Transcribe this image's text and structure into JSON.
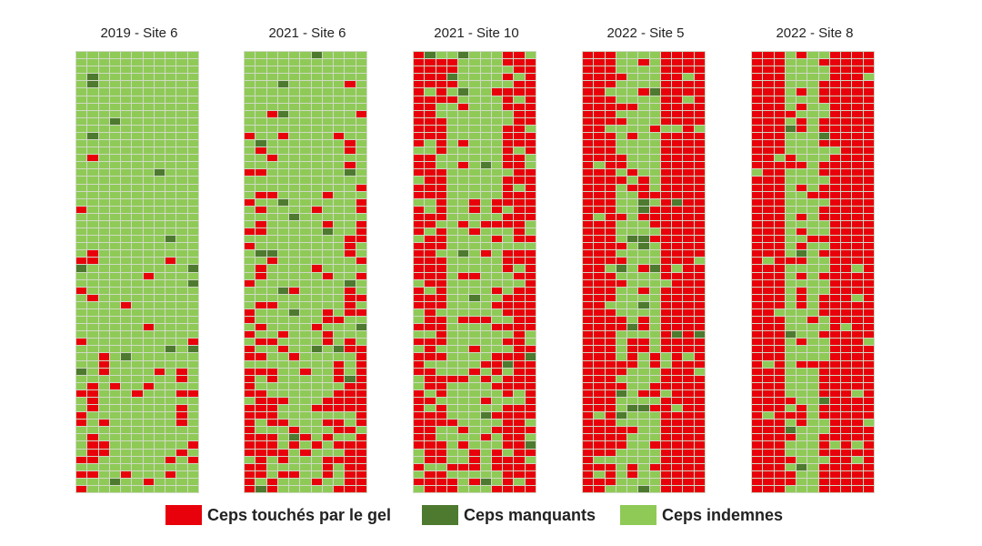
{
  "panels": [
    {
      "title": "2019 - Site 6"
    },
    {
      "title": "2021 - Site 6"
    },
    {
      "title": "2021 - Site 10"
    },
    {
      "title": "2022 - Site 5"
    },
    {
      "title": "2022 - Site 8"
    }
  ],
  "legend": [
    {
      "label": "Ceps touchés par le gel",
      "color": "#e8000b"
    },
    {
      "label": "Ceps manquants",
      "color": "#4e7a2f"
    },
    {
      "label": "Ceps indemnes",
      "color": "#8fca57"
    }
  ],
  "grid": {
    "rows": 60,
    "cols": 11
  },
  "chart_data": {
    "type": "heatmap",
    "categories": [
      "Ceps touchés par le gel",
      "Ceps manquants",
      "Ceps indemnes"
    ],
    "grids": [
      {
        "title": "2019 - Site 6",
        "frost_share": 0.18,
        "missing_share": 0.03
      },
      {
        "title": "2021 - Site 6",
        "frost_share": 0.3,
        "missing_share": 0.03
      },
      {
        "title": "2021 - Site 10",
        "frost_share": 0.55,
        "missing_share": 0.04
      },
      {
        "title": "2022 - Site 5",
        "frost_share": 0.72,
        "missing_share": 0.08
      },
      {
        "title": "2022 - Site 8",
        "frost_share": 0.78,
        "missing_share": 0.05
      }
    ]
  }
}
